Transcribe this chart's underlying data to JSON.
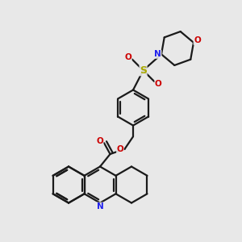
{
  "bg_color": "#e8e8e8",
  "bond_color": "#1a1a1a",
  "N_color": "#2020ee",
  "O_color": "#cc0000",
  "S_color": "#aaaa00",
  "lw": 1.6,
  "figsize": [
    3.0,
    3.0
  ],
  "dpi": 100,
  "xlim": [
    -1,
    11
  ],
  "ylim": [
    -1,
    11
  ]
}
